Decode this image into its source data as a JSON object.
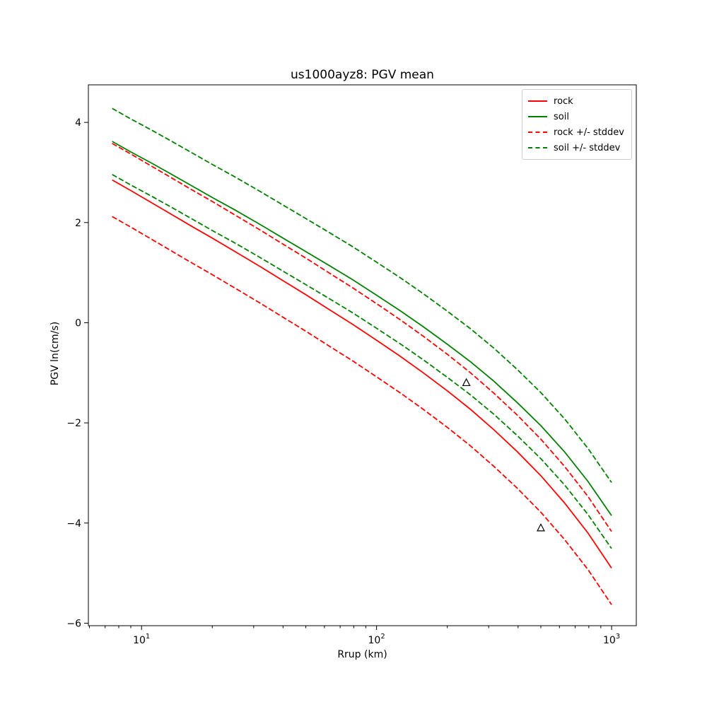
{
  "figure": {
    "title": "us1000ayz8: PGV mean",
    "xlabel": "Rrup (km)",
    "ylabel": "PGV ln(cm/s)"
  },
  "chart_data": {
    "type": "line",
    "title": "us1000ayz8: PGV mean",
    "xlabel": "Rrup (km)",
    "ylabel": "PGV ln(cm/s)",
    "x_scale": "log",
    "xlim": [
      5.94,
      1274
    ],
    "ylim": [
      -6.05,
      4.75
    ],
    "x_ticks": [
      10,
      100,
      1000
    ],
    "y_ticks": [
      -6,
      -4,
      -2,
      0,
      2,
      4
    ],
    "grid": false,
    "legend_position": "upper right",
    "x": [
      7.5,
      9,
      11,
      13,
      16,
      20,
      25,
      32,
      40,
      50,
      63,
      79,
      100,
      126,
      158,
      200,
      251,
      316,
      398,
      501,
      631,
      794,
      1000
    ],
    "series": [
      {
        "name": "rock",
        "color": "#ff0000",
        "linestyle": "solid",
        "values": [
          2.85,
          2.64,
          2.4,
          2.2,
          1.95,
          1.69,
          1.42,
          1.12,
          0.84,
          0.56,
          0.26,
          -0.03,
          -0.35,
          -0.67,
          -1.0,
          -1.36,
          -1.73,
          -2.14,
          -2.58,
          -3.06,
          -3.6,
          -4.2,
          -4.9
        ]
      },
      {
        "name": "soil",
        "color": "#008000",
        "linestyle": "solid",
        "values": [
          3.62,
          3.41,
          3.19,
          3.0,
          2.76,
          2.5,
          2.25,
          1.96,
          1.69,
          1.42,
          1.14,
          0.86,
          0.55,
          0.24,
          -0.08,
          -0.43,
          -0.78,
          -1.17,
          -1.6,
          -2.06,
          -2.58,
          -3.17,
          -3.85
        ]
      },
      {
        "name": "rock +/- stddev",
        "color": "#ff0000",
        "linestyle": "dashed",
        "upper": [
          3.58,
          3.37,
          3.13,
          2.93,
          2.68,
          2.42,
          2.15,
          1.85,
          1.57,
          1.29,
          0.99,
          0.7,
          0.38,
          0.06,
          -0.27,
          -0.63,
          -1.0,
          -1.41,
          -1.85,
          -2.33,
          -2.87,
          -3.47,
          -4.17
        ],
        "lower": [
          2.12,
          1.91,
          1.67,
          1.47,
          1.22,
          0.96,
          0.69,
          0.39,
          0.11,
          -0.17,
          -0.47,
          -0.76,
          -1.08,
          -1.4,
          -1.73,
          -2.09,
          -2.46,
          -2.87,
          -3.31,
          -3.79,
          -4.33,
          -4.93,
          -5.63
        ]
      },
      {
        "name": "soil +/- stddev",
        "color": "#008000",
        "linestyle": "dashed",
        "upper": [
          4.28,
          4.07,
          3.85,
          3.66,
          3.42,
          3.16,
          2.91,
          2.62,
          2.35,
          2.08,
          1.8,
          1.52,
          1.21,
          0.9,
          0.58,
          0.23,
          -0.12,
          -0.51,
          -0.94,
          -1.4,
          -1.92,
          -2.51,
          -3.19
        ],
        "lower": [
          2.96,
          2.75,
          2.53,
          2.34,
          2.1,
          1.84,
          1.59,
          1.3,
          1.03,
          0.76,
          0.48,
          0.2,
          -0.11,
          -0.42,
          -0.74,
          -1.09,
          -1.44,
          -1.83,
          -2.26,
          -2.72,
          -3.24,
          -3.83,
          -4.51
        ]
      }
    ],
    "markers": [
      {
        "shape": "triangle-open",
        "x": 241,
        "y": -1.2,
        "edge_color": "#000000",
        "fill": "none"
      },
      {
        "shape": "triangle-open",
        "x": 500,
        "y": -4.1,
        "edge_color": "#000000",
        "fill": "none"
      }
    ]
  }
}
